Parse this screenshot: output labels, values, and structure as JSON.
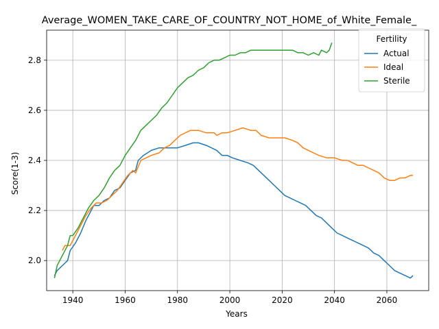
{
  "chart_data": {
    "type": "line",
    "title": "Average_WOMEN_TAKE_CARE_OF_COUNTRY_NOT_HOME_of_White_Female_",
    "xlabel": "Years",
    "ylabel": "Score(1-3)",
    "xlim": [
      1930,
      2076
    ],
    "ylim": [
      1.88,
      2.92
    ],
    "xticks": [
      1940,
      1960,
      1980,
      2000,
      2020,
      2040,
      2060
    ],
    "yticks": [
      2.0,
      2.2,
      2.4,
      2.6,
      2.8
    ],
    "xtick_labels": [
      "1940",
      "1960",
      "1980",
      "2000",
      "2020",
      "2040",
      "2060"
    ],
    "ytick_labels": [
      "2.0",
      "2.2",
      "2.4",
      "2.6",
      "2.8"
    ],
    "grid": true,
    "legend": {
      "title": "Fertility",
      "placement": "top-right"
    },
    "series": [
      {
        "name": "Actual",
        "color": "#1f77b4",
        "points": [
          [
            1933,
            1.94
          ],
          [
            1934,
            1.96
          ],
          [
            1936,
            1.98
          ],
          [
            1938,
            2.0
          ],
          [
            1939,
            2.04
          ],
          [
            1941,
            2.07
          ],
          [
            1943,
            2.11
          ],
          [
            1945,
            2.16
          ],
          [
            1947,
            2.2
          ],
          [
            1948,
            2.22
          ],
          [
            1950,
            2.22
          ],
          [
            1952,
            2.24
          ],
          [
            1954,
            2.25
          ],
          [
            1956,
            2.28
          ],
          [
            1958,
            2.29
          ],
          [
            1960,
            2.32
          ],
          [
            1962,
            2.35
          ],
          [
            1964,
            2.36
          ],
          [
            1965,
            2.4
          ],
          [
            1967,
            2.42
          ],
          [
            1970,
            2.44
          ],
          [
            1973,
            2.45
          ],
          [
            1975,
            2.45
          ],
          [
            1978,
            2.45
          ],
          [
            1980,
            2.45
          ],
          [
            1983,
            2.46
          ],
          [
            1986,
            2.47
          ],
          [
            1988,
            2.47
          ],
          [
            1991,
            2.46
          ],
          [
            1993,
            2.45
          ],
          [
            1995,
            2.44
          ],
          [
            1997,
            2.42
          ],
          [
            1999,
            2.42
          ],
          [
            2001,
            2.41
          ],
          [
            2004,
            2.4
          ],
          [
            2007,
            2.39
          ],
          [
            2009,
            2.38
          ],
          [
            2011,
            2.36
          ],
          [
            2013,
            2.34
          ],
          [
            2015,
            2.32
          ],
          [
            2017,
            2.3
          ],
          [
            2019,
            2.28
          ],
          [
            2021,
            2.26
          ],
          [
            2023,
            2.25
          ],
          [
            2025,
            2.24
          ],
          [
            2027,
            2.23
          ],
          [
            2029,
            2.22
          ],
          [
            2031,
            2.2
          ],
          [
            2033,
            2.18
          ],
          [
            2035,
            2.17
          ],
          [
            2037,
            2.15
          ],
          [
            2039,
            2.13
          ],
          [
            2041,
            2.11
          ],
          [
            2043,
            2.1
          ],
          [
            2045,
            2.09
          ],
          [
            2047,
            2.08
          ],
          [
            2049,
            2.07
          ],
          [
            2051,
            2.06
          ],
          [
            2053,
            2.05
          ],
          [
            2055,
            2.03
          ],
          [
            2057,
            2.02
          ],
          [
            2059,
            2.0
          ],
          [
            2061,
            1.98
          ],
          [
            2063,
            1.96
          ],
          [
            2065,
            1.95
          ],
          [
            2067,
            1.94
          ],
          [
            2069,
            1.93
          ],
          [
            2070,
            1.94
          ]
        ]
      },
      {
        "name": "Ideal",
        "color": "#ff7f0e",
        "points": [
          [
            1936,
            2.04
          ],
          [
            1937,
            2.06
          ],
          [
            1939,
            2.06
          ],
          [
            1941,
            2.1
          ],
          [
            1943,
            2.14
          ],
          [
            1945,
            2.18
          ],
          [
            1947,
            2.21
          ],
          [
            1949,
            2.23
          ],
          [
            1951,
            2.23
          ],
          [
            1953,
            2.24
          ],
          [
            1955,
            2.26
          ],
          [
            1957,
            2.28
          ],
          [
            1959,
            2.31
          ],
          [
            1961,
            2.34
          ],
          [
            1963,
            2.36
          ],
          [
            1964,
            2.35
          ],
          [
            1966,
            2.4
          ],
          [
            1968,
            2.41
          ],
          [
            1970,
            2.42
          ],
          [
            1973,
            2.43
          ],
          [
            1975,
            2.45
          ],
          [
            1977,
            2.46
          ],
          [
            1979,
            2.48
          ],
          [
            1981,
            2.5
          ],
          [
            1983,
            2.51
          ],
          [
            1985,
            2.52
          ],
          [
            1988,
            2.52
          ],
          [
            1991,
            2.51
          ],
          [
            1994,
            2.51
          ],
          [
            1995,
            2.5
          ],
          [
            1997,
            2.51
          ],
          [
            1999,
            2.51
          ],
          [
            2002,
            2.52
          ],
          [
            2005,
            2.53
          ],
          [
            2008,
            2.52
          ],
          [
            2010,
            2.52
          ],
          [
            2012,
            2.5
          ],
          [
            2015,
            2.49
          ],
          [
            2018,
            2.49
          ],
          [
            2021,
            2.49
          ],
          [
            2024,
            2.48
          ],
          [
            2026,
            2.47
          ],
          [
            2028,
            2.45
          ],
          [
            2030,
            2.44
          ],
          [
            2032,
            2.43
          ],
          [
            2034,
            2.42
          ],
          [
            2037,
            2.41
          ],
          [
            2040,
            2.41
          ],
          [
            2043,
            2.4
          ],
          [
            2045,
            2.4
          ],
          [
            2047,
            2.39
          ],
          [
            2049,
            2.38
          ],
          [
            2051,
            2.38
          ],
          [
            2053,
            2.37
          ],
          [
            2055,
            2.36
          ],
          [
            2057,
            2.35
          ],
          [
            2059,
            2.33
          ],
          [
            2061,
            2.32
          ],
          [
            2063,
            2.32
          ],
          [
            2065,
            2.33
          ],
          [
            2067,
            2.33
          ],
          [
            2069,
            2.34
          ],
          [
            2070,
            2.34
          ]
        ]
      },
      {
        "name": "Sterile",
        "color": "#2ca02c",
        "points": [
          [
            1933,
            1.93
          ],
          [
            1934,
            1.98
          ],
          [
            1936,
            2.02
          ],
          [
            1938,
            2.06
          ],
          [
            1939,
            2.1
          ],
          [
            1940,
            2.1
          ],
          [
            1942,
            2.13
          ],
          [
            1944,
            2.17
          ],
          [
            1946,
            2.21
          ],
          [
            1948,
            2.24
          ],
          [
            1950,
            2.26
          ],
          [
            1952,
            2.29
          ],
          [
            1954,
            2.33
          ],
          [
            1956,
            2.36
          ],
          [
            1958,
            2.38
          ],
          [
            1960,
            2.42
          ],
          [
            1962,
            2.45
          ],
          [
            1964,
            2.48
          ],
          [
            1966,
            2.52
          ],
          [
            1968,
            2.54
          ],
          [
            1970,
            2.56
          ],
          [
            1972,
            2.58
          ],
          [
            1974,
            2.61
          ],
          [
            1976,
            2.63
          ],
          [
            1978,
            2.66
          ],
          [
            1980,
            2.69
          ],
          [
            1982,
            2.71
          ],
          [
            1984,
            2.73
          ],
          [
            1986,
            2.74
          ],
          [
            1988,
            2.76
          ],
          [
            1990,
            2.77
          ],
          [
            1992,
            2.79
          ],
          [
            1994,
            2.8
          ],
          [
            1996,
            2.8
          ],
          [
            1998,
            2.81
          ],
          [
            2000,
            2.82
          ],
          [
            2002,
            2.82
          ],
          [
            2004,
            2.83
          ],
          [
            2006,
            2.83
          ],
          [
            2008,
            2.84
          ],
          [
            2010,
            2.84
          ],
          [
            2012,
            2.84
          ],
          [
            2014,
            2.84
          ],
          [
            2016,
            2.84
          ],
          [
            2018,
            2.84
          ],
          [
            2020,
            2.84
          ],
          [
            2022,
            2.84
          ],
          [
            2024,
            2.84
          ],
          [
            2026,
            2.83
          ],
          [
            2028,
            2.83
          ],
          [
            2030,
            2.82
          ],
          [
            2032,
            2.83
          ],
          [
            2034,
            2.82
          ],
          [
            2035,
            2.84
          ],
          [
            2037,
            2.83
          ],
          [
            2038,
            2.84
          ],
          [
            2039,
            2.87
          ]
        ]
      }
    ]
  }
}
